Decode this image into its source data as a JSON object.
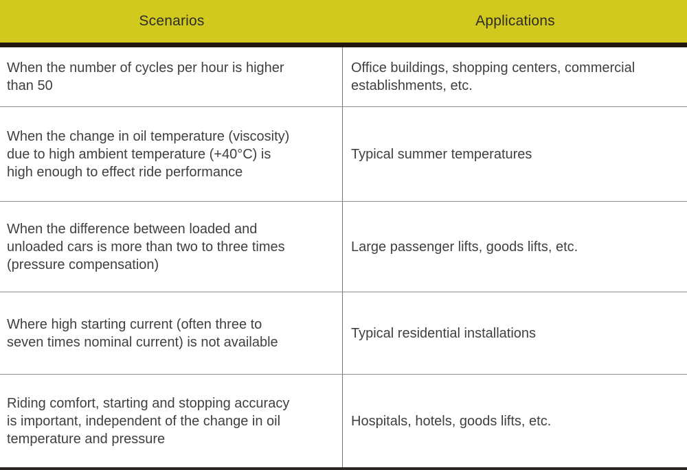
{
  "table": {
    "columns": [
      "Scenarios",
      "Applications"
    ],
    "header_background": "#d1c91e",
    "header_underline_color": "#241710",
    "text_color": "#3f3f41",
    "rows": [
      {
        "scenario": "When the number of cycles per hour is higher\nthan 50",
        "application": "Office buildings, shopping centers, commercial\nestablishments, etc."
      },
      {
        "scenario": "When the change in oil temperature (viscosity)\ndue to high ambient temperature (+40°C) is\nhigh enough to effect ride performance",
        "application": "Typical summer temperatures"
      },
      {
        "scenario": "When the difference between loaded and\nunloaded cars is more than two to three times\n(pressure compensation)",
        "application": "Large passenger lifts, goods lifts, etc."
      },
      {
        "scenario": "Where high starting current (often three to\nseven times nominal current) is not available",
        "application": "Typical residential installations"
      },
      {
        "scenario": "Riding comfort, starting and stopping accuracy\nis important, independent of the change in oil\ntemperature and pressure",
        "application": "Hospitals, hotels, goods lifts, etc."
      }
    ]
  }
}
